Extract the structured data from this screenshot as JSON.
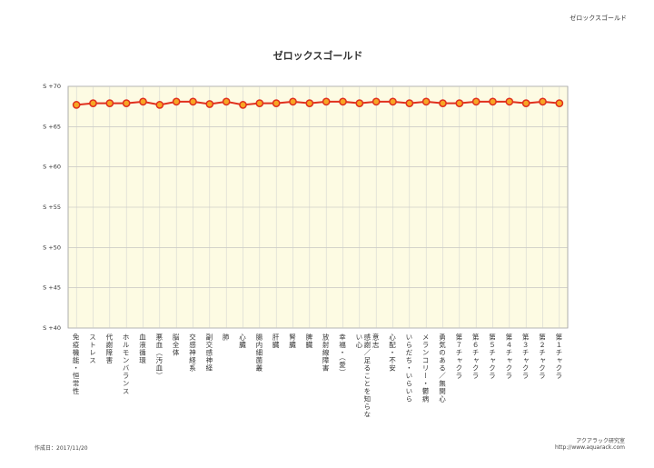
{
  "header": "ゼロックスゴールド",
  "footer": {
    "date": "作成日：2017/11/20",
    "org": "アクアラック研究室",
    "url": "http://www.aquarack.com"
  },
  "chart_data": {
    "type": "line",
    "title": "ゼロックスゴールド",
    "categories": [
      "免疫機能・恒常性",
      "ストレス",
      "代謝障害",
      "ホルモンバランス",
      "血液循環",
      "悪血（汚血）",
      "脳全体",
      "交感神経系",
      "副交感神経",
      "肺",
      "心臓",
      "腸内細菌叢",
      "肝臓",
      "腎臓",
      "脾臓",
      "放射線障害",
      "幸福・（愛）",
      "感謝／足ることを知らない心",
      "意志",
      "心配・不安",
      "いらだち・いらいら",
      "メランコリー・鬱病",
      "勇気のある／無関心",
      "第７チャクラ",
      "第６チャクラ",
      "第５チャクラ",
      "第４チャクラ",
      "第３チャクラ",
      "第２チャクラ",
      "第１チャクラ"
    ],
    "values": [
      67.7,
      67.9,
      67.9,
      67.9,
      68.1,
      67.7,
      68.1,
      68.1,
      67.8,
      68.1,
      67.7,
      67.9,
      67.9,
      68.1,
      67.9,
      68.1,
      68.1,
      67.9,
      68.1,
      68.1,
      67.9,
      68.1,
      67.9,
      67.9,
      68.1,
      68.1,
      68.1,
      67.9,
      68.1,
      67.9
    ],
    "color": "#e0301e",
    "ylim": [
      40,
      70
    ],
    "yticks": [
      {
        "value": 40,
        "label": "S +40"
      },
      {
        "value": 45,
        "label": "S +45"
      },
      {
        "value": 50,
        "label": "S +50"
      },
      {
        "value": 55,
        "label": "S +55"
      },
      {
        "value": 60,
        "label": "S +60"
      },
      {
        "value": 65,
        "label": "S +65"
      },
      {
        "value": 70,
        "label": "S +70"
      }
    ],
    "grid": true
  }
}
